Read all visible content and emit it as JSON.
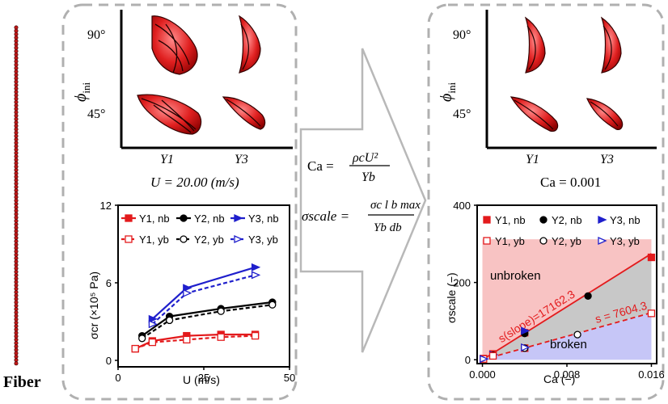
{
  "fiber": {
    "label": "Fiber"
  },
  "left_panel": {
    "y_axis_label": "ϕ",
    "y_axis_subscript": "ini",
    "y_tick_top": "90°",
    "y_tick_bottom": "45°",
    "x_tick_1": "Y1",
    "x_tick_2": "Y3",
    "condition": "U = 20.00 (m/s)"
  },
  "right_panel": {
    "y_axis_label": "ϕ",
    "y_axis_subscript": "ini",
    "y_tick_top": "90°",
    "y_tick_bottom": "45°",
    "x_tick_1": "Y1",
    "x_tick_2": "Y3",
    "condition": "Ca = 0.001"
  },
  "equations": {
    "ca_lhs": "Ca =",
    "ca_num": "ρcU²",
    "ca_den": "Yb",
    "sigma_lhs": "σscale =",
    "sigma_num": "σc l b max",
    "sigma_den": "Yb db"
  },
  "colors": {
    "red": "#e31a1c",
    "black": "#000000",
    "blue": "#1f1fcc",
    "gray_border": "#b0b0b0",
    "unbroken_fill": "#f7b8b8",
    "broken_fill": "#c6c6f7",
    "gap_fill": "#c8c8c8"
  },
  "chart_data": [
    {
      "type": "line",
      "xlabel": "U (m/s)",
      "ylabel": "σcr (×10⁵ Pa)",
      "xlim": [
        0,
        50
      ],
      "ylim": [
        -0.5,
        12
      ],
      "xticks": [
        0,
        25,
        50
      ],
      "yticks": [
        0,
        6,
        12
      ],
      "series": [
        {
          "name": "Y1, nb",
          "color": "#e31a1c",
          "marker": "square",
          "dashed": false,
          "x": [
            5,
            10,
            20,
            30,
            40
          ],
          "y": [
            0.9,
            1.5,
            1.9,
            2.0,
            2.0
          ]
        },
        {
          "name": "Y2, nb",
          "color": "#000000",
          "marker": "circle",
          "dashed": false,
          "x": [
            7,
            15,
            30,
            45
          ],
          "y": [
            1.9,
            3.4,
            4.0,
            4.5
          ]
        },
        {
          "name": "Y3, nb",
          "color": "#1f1fcc",
          "marker": "triangle",
          "dashed": false,
          "x": [
            10,
            20,
            40
          ],
          "y": [
            3.2,
            5.6,
            7.2
          ]
        },
        {
          "name": "Y1, yb",
          "color": "#e31a1c",
          "marker": "square-open",
          "dashed": true,
          "x": [
            5,
            10,
            20,
            30,
            40
          ],
          "y": [
            0.9,
            1.4,
            1.6,
            1.8,
            1.9
          ]
        },
        {
          "name": "Y2, yb",
          "color": "#000000",
          "marker": "circle-open",
          "dashed": true,
          "x": [
            7,
            15,
            30,
            45
          ],
          "y": [
            1.7,
            3.1,
            3.8,
            4.3
          ]
        },
        {
          "name": "Y3, yb",
          "color": "#1f1fcc",
          "marker": "triangle-open",
          "dashed": true,
          "x": [
            10,
            20,
            40
          ],
          "y": [
            2.8,
            5.2,
            6.6
          ]
        }
      ]
    },
    {
      "type": "scatter",
      "xlabel": "Ca (−)",
      "ylabel": "σscale (−)",
      "xlim": [
        -0.0005,
        0.0165
      ],
      "ylim": [
        -10,
        400
      ],
      "xticks": [
        0.0,
        0.008,
        0.016
      ],
      "xtick_labels": [
        "0.000",
        "0.008",
        "0.016"
      ],
      "yticks": [
        0,
        200,
        400
      ],
      "series": [
        {
          "name": "Y1, nb",
          "color": "#e31a1c",
          "marker": "square",
          "x": [
            0.0001,
            0.001,
            0.004,
            0.016
          ],
          "y": [
            3,
            15,
            70,
            265
          ]
        },
        {
          "name": "Y2, nb",
          "color": "#000000",
          "marker": "circle",
          "x": [
            0.001,
            0.004,
            0.01
          ],
          "y": [
            12,
            68,
            165
          ]
        },
        {
          "name": "Y3, nb",
          "color": "#1f1fcc",
          "marker": "triangle",
          "x": [
            0.0001,
            0.001,
            0.004
          ],
          "y": [
            2,
            13,
            75
          ]
        },
        {
          "name": "Y1, yb",
          "color": "#e31a1c",
          "marker": "square-open",
          "x": [
            0.0001,
            0.001,
            0.004,
            0.016
          ],
          "y": [
            2,
            10,
            30,
            120
          ]
        },
        {
          "name": "Y2, yb",
          "color": "#000000",
          "marker": "circle-open",
          "x": [
            0.004,
            0.009
          ],
          "y": [
            30,
            65
          ]
        },
        {
          "name": "Y3, yb",
          "color": "#1f1fcc",
          "marker": "triangle-open",
          "x": [
            0.0001,
            0.004
          ],
          "y": [
            2,
            32
          ]
        }
      ],
      "fits": [
        {
          "label": "s(slope)=17162.3",
          "slope": 17162.3,
          "color": "#e31a1c",
          "dashed": false
        },
        {
          "label": "s = 7604.3",
          "slope": 7604.3,
          "color": "#e31a1c",
          "dashed": true
        }
      ],
      "regions": {
        "upper": "unbroken",
        "lower": "broken"
      }
    }
  ]
}
